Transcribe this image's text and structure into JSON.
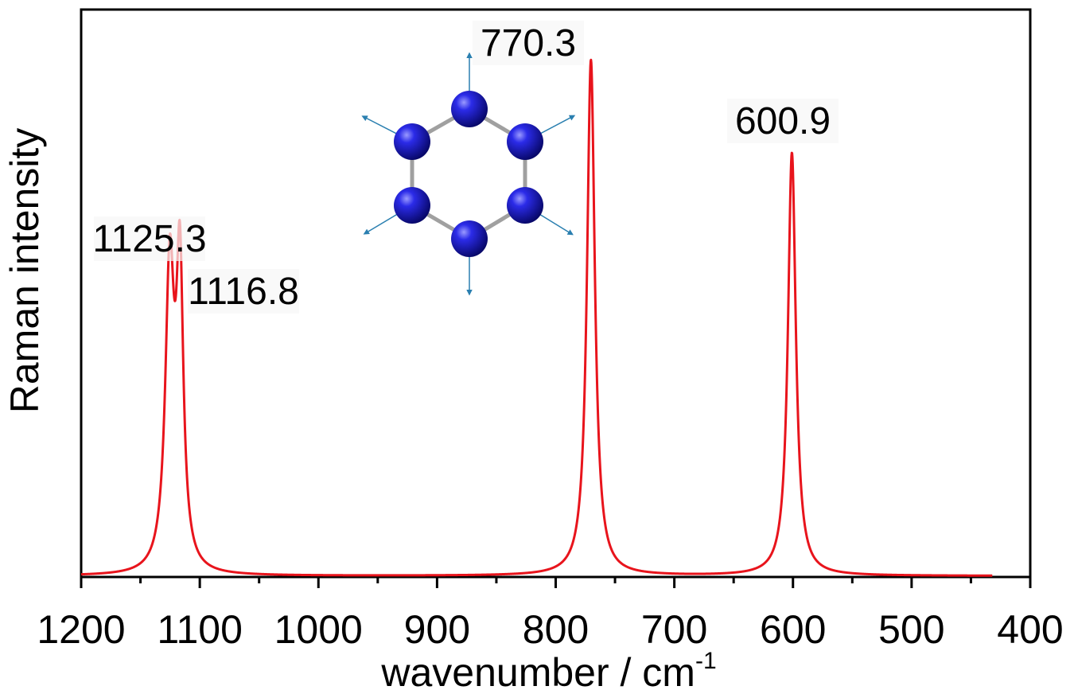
{
  "chart_data": {
    "type": "line",
    "xlabel": "wavenumber / cm",
    "xlabel_superscript": "-1",
    "ylabel": "Raman intensity",
    "xlim": [
      1200,
      400
    ],
    "x_reversed": true,
    "x_ticks": [
      "1200",
      "1100",
      "1000",
      "900",
      "800",
      "700",
      "600",
      "500",
      "400"
    ],
    "x_range_plotted": [
      1200,
      432
    ],
    "ylim": [
      0,
      1.1
    ],
    "y_ticks_visible": false,
    "grid": false,
    "legend": "none",
    "line_color": "#e8141c",
    "peaks": [
      {
        "position": 1125.3,
        "label": "1125.3",
        "height": 0.58,
        "hwhm": 4.5
      },
      {
        "position": 1116.8,
        "label": "1116.8",
        "height": 0.56,
        "hwhm": 3.5
      },
      {
        "position": 770.3,
        "label": "770.3",
        "height": 1.0,
        "hwhm": 4.0
      },
      {
        "position": 600.9,
        "label": "600.9",
        "height": 0.82,
        "hwhm": 4.0
      }
    ],
    "baseline": 0.002,
    "inset": {
      "description": "benzene-like hexagonal ring of six blue atoms with radial displacement arrows",
      "atom_color": "#1818c8",
      "arrow_color": "#2a7fb0",
      "bond_color": "#a0a0a0"
    }
  }
}
